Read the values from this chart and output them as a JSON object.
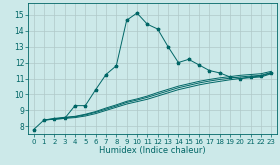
{
  "xlabel": "Humidex (Indice chaleur)",
  "bg_color": "#cce9e9",
  "grid_color": "#b0c8c8",
  "line_color": "#006666",
  "xlim": [
    -0.5,
    23.5
  ],
  "ylim": [
    7.5,
    15.7
  ],
  "xticks": [
    0,
    1,
    2,
    3,
    4,
    5,
    6,
    7,
    8,
    9,
    10,
    11,
    12,
    13,
    14,
    15,
    16,
    17,
    18,
    19,
    20,
    21,
    22,
    23
  ],
  "yticks": [
    8,
    9,
    10,
    11,
    12,
    13,
    14,
    15
  ],
  "main_line_x": [
    0,
    1,
    2,
    3,
    4,
    5,
    6,
    7,
    8,
    9,
    10,
    11,
    12,
    13,
    14,
    15,
    16,
    17,
    18,
    19,
    20,
    21,
    22,
    23
  ],
  "main_line_y": [
    7.8,
    8.4,
    8.45,
    8.5,
    9.3,
    9.3,
    10.3,
    11.25,
    11.8,
    14.65,
    15.1,
    14.4,
    14.1,
    13.0,
    12.0,
    12.2,
    11.85,
    11.5,
    11.35,
    11.1,
    11.0,
    11.1,
    11.15,
    11.35
  ],
  "line2_x": [
    1,
    2,
    3,
    4,
    5,
    6,
    7,
    8,
    9,
    10,
    11,
    12,
    13,
    14,
    15,
    16,
    17,
    18,
    19,
    20,
    21,
    22,
    23
  ],
  "line2_y": [
    8.4,
    8.45,
    8.5,
    8.55,
    8.65,
    8.8,
    9.0,
    9.2,
    9.4,
    9.55,
    9.7,
    9.9,
    10.1,
    10.3,
    10.45,
    10.6,
    10.72,
    10.82,
    10.92,
    11.0,
    11.05,
    11.1,
    11.3
  ],
  "line3_x": [
    1,
    2,
    3,
    4,
    5,
    6,
    7,
    8,
    9,
    10,
    11,
    12,
    13,
    14,
    15,
    16,
    17,
    18,
    19,
    20,
    21,
    22,
    23
  ],
  "line3_y": [
    8.4,
    8.47,
    8.54,
    8.6,
    8.72,
    8.88,
    9.08,
    9.28,
    9.5,
    9.65,
    9.82,
    10.02,
    10.22,
    10.42,
    10.57,
    10.72,
    10.84,
    10.94,
    11.02,
    11.1,
    11.15,
    11.2,
    11.38
  ],
  "line4_x": [
    1,
    2,
    3,
    4,
    5,
    6,
    7,
    8,
    9,
    10,
    11,
    12,
    13,
    14,
    15,
    16,
    17,
    18,
    19,
    20,
    21,
    22,
    23
  ],
  "line4_y": [
    8.4,
    8.5,
    8.57,
    8.63,
    8.76,
    8.93,
    9.15,
    9.35,
    9.57,
    9.72,
    9.9,
    10.12,
    10.32,
    10.52,
    10.67,
    10.82,
    10.94,
    11.04,
    11.12,
    11.2,
    11.25,
    11.3,
    11.45
  ]
}
